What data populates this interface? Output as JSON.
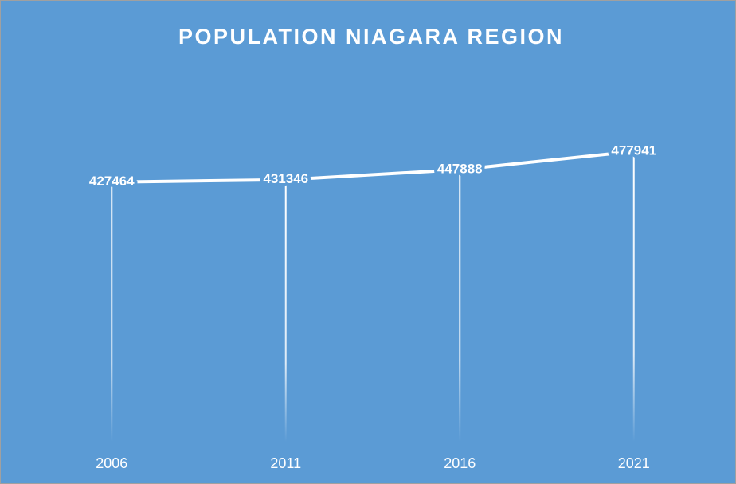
{
  "chart_data": {
    "type": "line",
    "title": "POPULATION NIAGARA REGION",
    "categories": [
      "2006",
      "2011",
      "2016",
      "2021"
    ],
    "values": [
      427464,
      431346,
      447888,
      477941
    ],
    "color": "#ffffff",
    "background": "#5b9bd5",
    "ylim": [
      0,
      600000
    ],
    "drop_lines": true,
    "data_labels": true
  }
}
